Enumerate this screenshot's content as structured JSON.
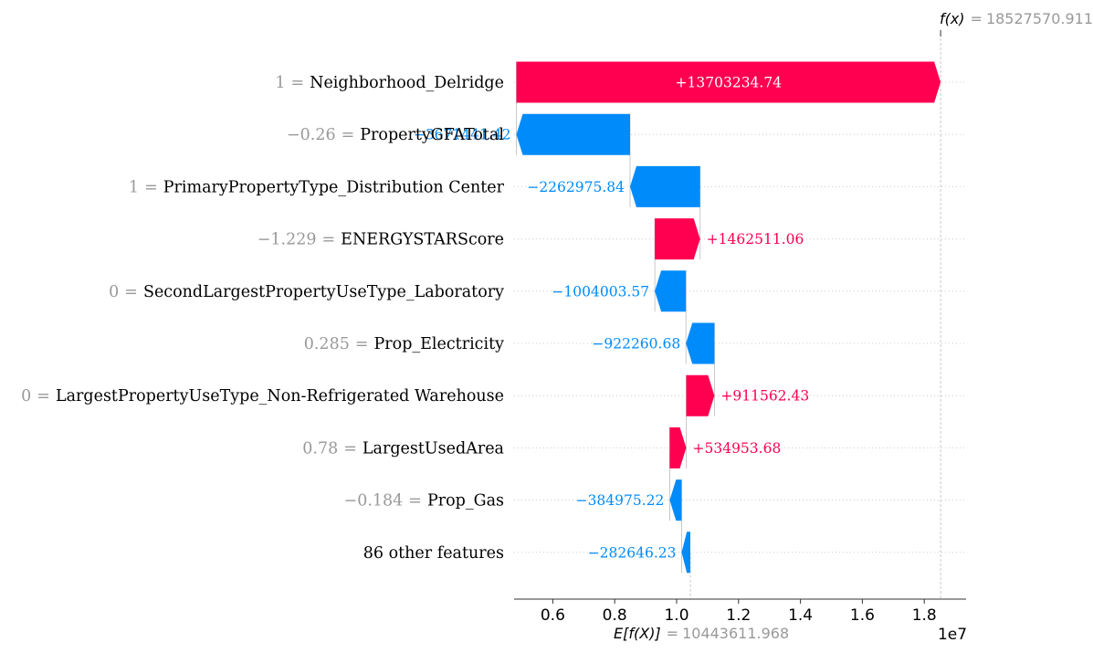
{
  "chart_data": {
    "type": "waterfall",
    "base_value": 10443611.968,
    "base_label": "E[f(X)]",
    "base_value_text": "10443611.968",
    "output_value": 18527570.911,
    "output_label": "f(x)",
    "output_value_text": "18527570.911",
    "x_scale_label": "1e7",
    "x_ticks": [
      0.6,
      0.8,
      1.0,
      1.2,
      1.4,
      1.6,
      1.8
    ],
    "x_tick_labels": [
      "0.6",
      "0.8",
      "1.0",
      "1.2",
      "1.4",
      "1.6",
      "1.8"
    ],
    "xlim": [
      4750000,
      19350000
    ],
    "colors": {
      "positive": "#ff0051",
      "negative": "#008bfb",
      "muted": "#999999"
    },
    "features": [
      {
        "value": "1",
        "name": "Neighborhood_Delridge",
        "contribution": 13703234.74,
        "label": "+13703234.74"
      },
      {
        "value": "−0.26",
        "name": "PropertyGFATotal",
        "contribution": -3671441.42,
        "label": "−3671441.42"
      },
      {
        "value": "1",
        "name": "PrimaryPropertyType_Distribution Center",
        "contribution": -2262975.84,
        "label": "−2262975.84"
      },
      {
        "value": "−1.229",
        "name": "ENERGYSTARScore",
        "contribution": 1462511.06,
        "label": "+1462511.06"
      },
      {
        "value": "0",
        "name": "SecondLargestPropertyUseType_Laboratory",
        "contribution": -1004003.57,
        "label": "−1004003.57"
      },
      {
        "value": "0.285",
        "name": "Prop_Electricity",
        "contribution": -922260.68,
        "label": "−922260.68"
      },
      {
        "value": "0",
        "name": "LargestPropertyUseType_Non-Refrigerated Warehouse",
        "contribution": 911562.43,
        "label": "+911562.43"
      },
      {
        "value": "0.78",
        "name": "LargestUsedArea",
        "contribution": 534953.68,
        "label": "+534953.68"
      },
      {
        "value": "−0.184",
        "name": "Prop_Gas",
        "contribution": -384975.22,
        "label": "−384975.22"
      },
      {
        "value": "",
        "name": "86 other features",
        "contribution": -282646.23,
        "label": "−282646.23"
      }
    ]
  }
}
